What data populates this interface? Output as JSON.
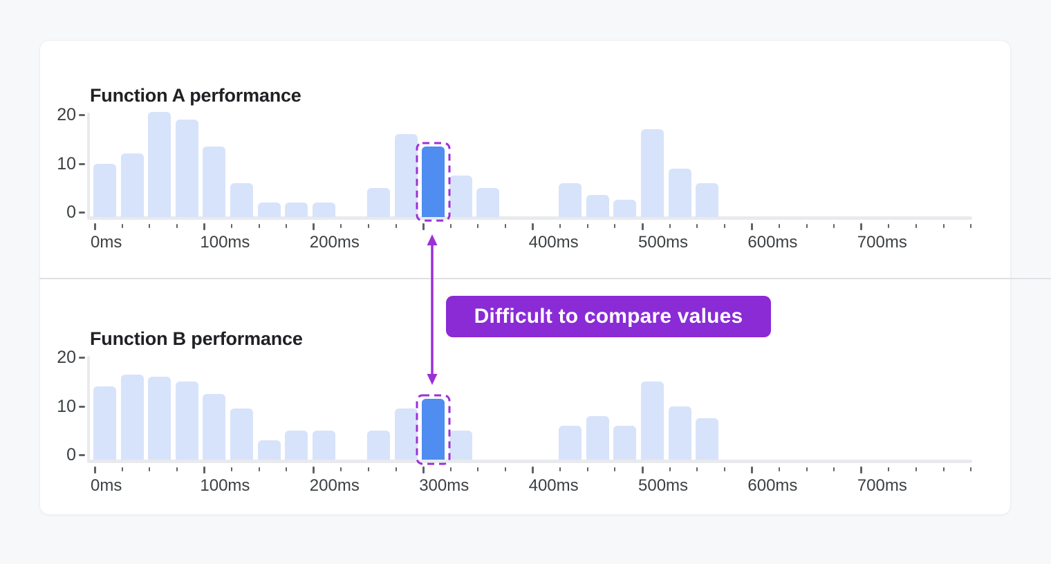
{
  "page": {
    "background": "#f7f8fa"
  },
  "colors": {
    "bar_light": "#d7e3fa",
    "bar_highlight": "#4f8df0",
    "purple_accent": "#9C30D6",
    "annotation_bg": "#8A2BD6",
    "axis_line": "#e8eaed",
    "tick": "#5f6368",
    "tick_label": "#3c4043",
    "title": "#202124",
    "divider": "#dfe1e5",
    "card_bg": "#ffffff"
  },
  "annotation": {
    "label": "Difficult to compare values"
  },
  "chart_data": [
    {
      "type": "bar",
      "title": "Function A performance",
      "x_unit": "ms",
      "bucket_ms": 25,
      "x_axis_range_ms": [
        0,
        800
      ],
      "ylim": [
        0,
        20
      ],
      "y_ticks": [
        0,
        10,
        20
      ],
      "x_tick_labels": [
        {
          "ms": 0,
          "text": "0ms"
        },
        {
          "ms": 100,
          "text": "100ms"
        },
        {
          "ms": 200,
          "text": "200ms"
        },
        {
          "ms": 400,
          "text": "400ms"
        },
        {
          "ms": 500,
          "text": "500ms"
        },
        {
          "ms": 600,
          "text": "600ms"
        },
        {
          "ms": 700,
          "text": "700ms"
        }
      ],
      "bars": [
        {
          "ms": 0,
          "value": 10
        },
        {
          "ms": 25,
          "value": 12
        },
        {
          "ms": 50,
          "value": 20.5
        },
        {
          "ms": 75,
          "value": 19
        },
        {
          "ms": 100,
          "value": 13.5
        },
        {
          "ms": 125,
          "value": 6
        },
        {
          "ms": 150,
          "value": 2
        },
        {
          "ms": 175,
          "value": 2
        },
        {
          "ms": 200,
          "value": 2
        },
        {
          "ms": 250,
          "value": 5
        },
        {
          "ms": 275,
          "value": 16
        },
        {
          "ms": 300,
          "value": 13.5
        },
        {
          "ms": 325,
          "value": 7.5
        },
        {
          "ms": 350,
          "value": 5
        },
        {
          "ms": 425,
          "value": 6
        },
        {
          "ms": 450,
          "value": 3.5
        },
        {
          "ms": 475,
          "value": 2.5
        },
        {
          "ms": 500,
          "value": 17
        },
        {
          "ms": 525,
          "value": 9
        },
        {
          "ms": 550,
          "value": 6
        }
      ],
      "highlight_ms": 300,
      "highlight_value": 13.5
    },
    {
      "type": "bar",
      "title": "Function B performance",
      "x_unit": "ms",
      "bucket_ms": 25,
      "x_axis_range_ms": [
        0,
        800
      ],
      "ylim": [
        0,
        20
      ],
      "y_ticks": [
        0,
        10,
        20
      ],
      "x_tick_labels": [
        {
          "ms": 0,
          "text": "0ms"
        },
        {
          "ms": 100,
          "text": "100ms"
        },
        {
          "ms": 200,
          "text": "200ms"
        },
        {
          "ms": 300,
          "text": "300ms"
        },
        {
          "ms": 400,
          "text": "400ms"
        },
        {
          "ms": 500,
          "text": "500ms"
        },
        {
          "ms": 600,
          "text": "600ms"
        },
        {
          "ms": 700,
          "text": "700ms"
        }
      ],
      "bars": [
        {
          "ms": 0,
          "value": 14
        },
        {
          "ms": 25,
          "value": 16.5
        },
        {
          "ms": 50,
          "value": 16
        },
        {
          "ms": 75,
          "value": 15
        },
        {
          "ms": 100,
          "value": 12.5
        },
        {
          "ms": 125,
          "value": 9.5
        },
        {
          "ms": 150,
          "value": 3
        },
        {
          "ms": 175,
          "value": 5
        },
        {
          "ms": 200,
          "value": 5
        },
        {
          "ms": 250,
          "value": 5
        },
        {
          "ms": 275,
          "value": 9.5
        },
        {
          "ms": 300,
          "value": 11.5
        },
        {
          "ms": 325,
          "value": 5
        },
        {
          "ms": 425,
          "value": 6
        },
        {
          "ms": 450,
          "value": 8
        },
        {
          "ms": 475,
          "value": 6
        },
        {
          "ms": 500,
          "value": 15
        },
        {
          "ms": 525,
          "value": 10
        },
        {
          "ms": 550,
          "value": 7.5
        }
      ],
      "highlight_ms": 300,
      "highlight_value": 11.5
    }
  ]
}
